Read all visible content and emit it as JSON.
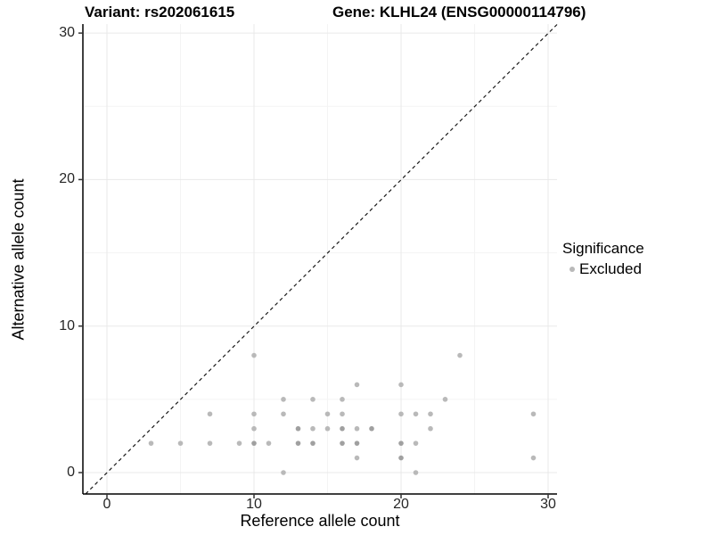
{
  "header": {
    "title_left": "Variant: rs202061615",
    "title_right": "Gene: KLHL24 (ENSG00000114796)"
  },
  "chart_data": {
    "type": "scatter",
    "title": "Variant: rs202061615 / Gene: KLHL24 (ENSG00000114796)",
    "xlabel": "Reference allele count",
    "ylabel": "Alternative allele count",
    "x_ticks": [
      0,
      10,
      20,
      30
    ],
    "y_ticks": [
      0,
      10,
      20,
      30
    ],
    "x_minor_gridlines": [
      5,
      15,
      25
    ],
    "y_minor_gridlines": [
      5,
      15,
      25
    ],
    "xlim": [
      -1.6,
      30.7
    ],
    "ylim": [
      -1.5,
      30.7
    ],
    "grid": "on",
    "reference_line": {
      "kind": "identity y=x",
      "style": "dashed",
      "color": "#1a1a1a"
    },
    "legend": {
      "title": "Significance",
      "position": "right",
      "items": [
        {
          "label": "Excluded",
          "color": "#b9b9b9"
        }
      ]
    },
    "colors": {
      "point": "#b9b9b9",
      "point_overlap": "#a0a0a0",
      "grid_major": "#e9e9e9",
      "grid_minor": "#f4f4f4",
      "axis_line": "#000000",
      "tick": "#333333"
    },
    "points_format": "[reference_allele_count, alternative_allele_count, overplot_shade]",
    "points": [
      [
        3,
        2,
        1
      ],
      [
        5,
        2,
        1
      ],
      [
        7,
        2,
        1
      ],
      [
        7,
        4,
        1
      ],
      [
        9,
        2,
        1
      ],
      [
        10,
        2,
        2
      ],
      [
        10,
        3,
        1
      ],
      [
        10,
        4,
        1
      ],
      [
        10,
        8,
        1
      ],
      [
        11,
        2,
        1
      ],
      [
        12,
        0,
        1
      ],
      [
        12,
        4,
        1
      ],
      [
        12,
        5,
        1
      ],
      [
        13,
        2,
        2
      ],
      [
        13,
        3,
        2
      ],
      [
        14,
        2,
        2
      ],
      [
        14,
        3,
        1
      ],
      [
        14,
        5,
        1
      ],
      [
        15,
        3,
        1
      ],
      [
        15,
        4,
        1
      ],
      [
        16,
        2,
        2
      ],
      [
        16,
        3,
        2
      ],
      [
        16,
        4,
        1
      ],
      [
        16,
        5,
        1
      ],
      [
        17,
        1,
        1
      ],
      [
        17,
        2,
        2
      ],
      [
        17,
        3,
        1
      ],
      [
        17,
        6,
        1
      ],
      [
        18,
        3,
        2
      ],
      [
        20,
        1,
        2
      ],
      [
        20,
        2,
        2
      ],
      [
        20,
        4,
        1
      ],
      [
        20,
        6,
        1
      ],
      [
        21,
        0,
        1
      ],
      [
        21,
        2,
        1
      ],
      [
        21,
        4,
        1
      ],
      [
        22,
        3,
        1
      ],
      [
        22,
        4,
        1
      ],
      [
        23,
        5,
        1
      ],
      [
        24,
        8,
        1
      ],
      [
        29,
        1,
        1
      ],
      [
        29,
        4,
        1
      ]
    ]
  }
}
